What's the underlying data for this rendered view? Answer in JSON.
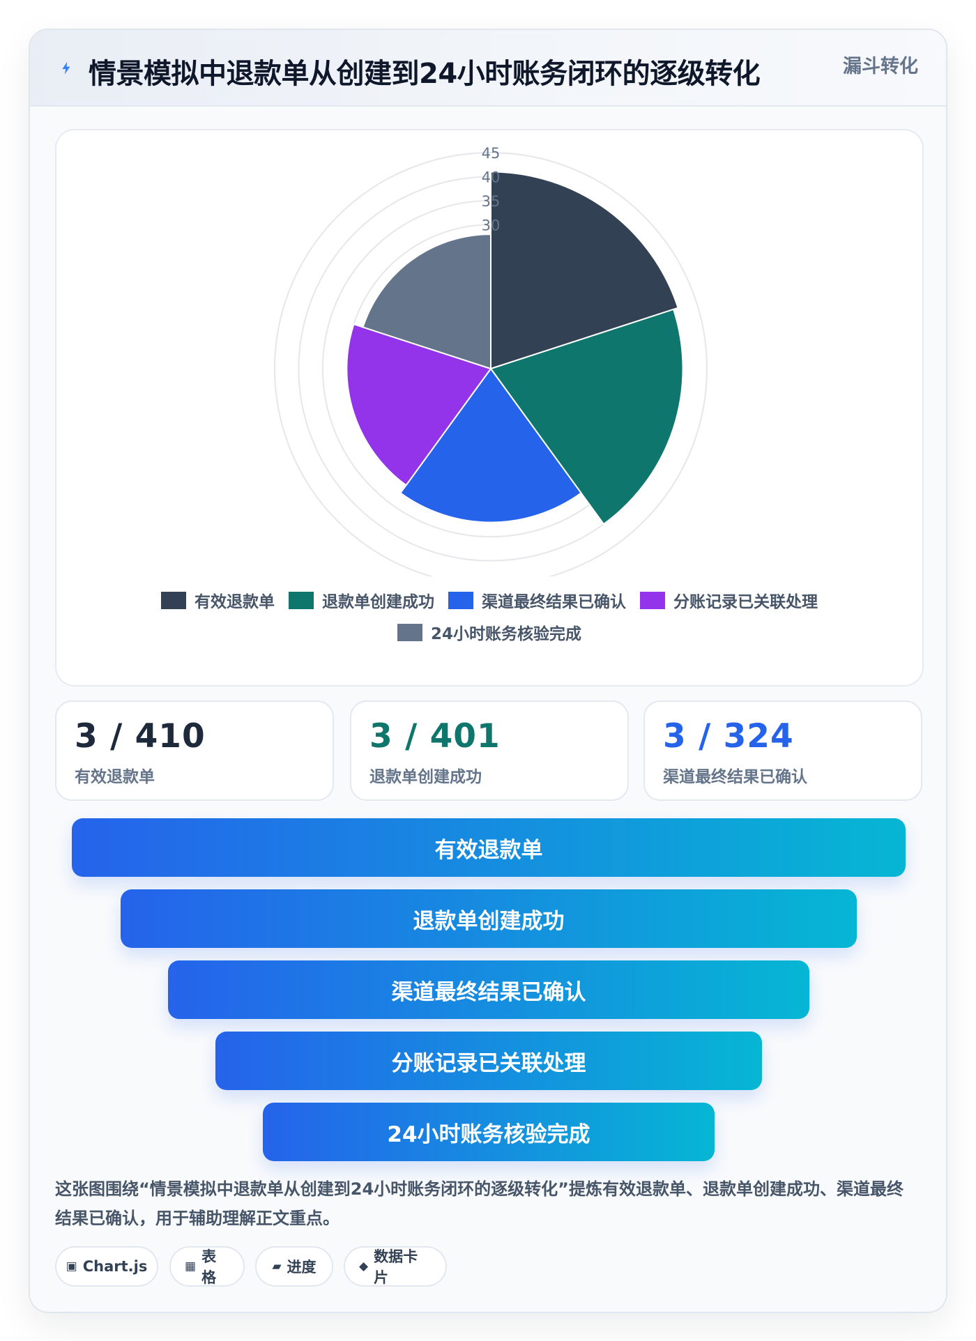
{
  "header": {
    "title": "情景模拟中退款单从创建到24小时账务闭环的逐级转化",
    "tag": "漏斗转化",
    "icon": "lightning-icon"
  },
  "chart_data": {
    "type": "polarArea",
    "categories": [
      "有效退款单",
      "退款单创建成功",
      "渠道最终结果已确认",
      "分账记录已关联处理",
      "24小时账务核验完成"
    ],
    "values": [
      41,
      40,
      32,
      30,
      28
    ],
    "colors": [
      "#334155",
      "#0f766e",
      "#2563eb",
      "#9333ea",
      "#64748b"
    ],
    "r_ticks": [
      "30",
      "35",
      "40",
      "45"
    ],
    "r_min": 0,
    "r_max": 45,
    "grid": true,
    "legend_position": "bottom"
  },
  "stats": [
    {
      "value": "3 / 410",
      "label": "有效退款单",
      "color": "#1e293b"
    },
    {
      "value": "3 / 401",
      "label": "退款单创建成功",
      "color": "#0f766e"
    },
    {
      "value": "3 / 324",
      "label": "渠道最终结果已确认",
      "color": "#2563eb"
    }
  ],
  "funnel": [
    {
      "label": "有效退款单"
    },
    {
      "label": "退款单创建成功"
    },
    {
      "label": "渠道最终结果已确认"
    },
    {
      "label": "分账记录已关联处理"
    },
    {
      "label": "24小时账务核验完成"
    }
  ],
  "description": "这张图围绕“情景模拟中退款单从创建到24小时账务闭环的逐级转化”提炼有效退款单、退款单创建成功、渠道最终结果已确认，用于辅助理解正文重点。",
  "chips": [
    {
      "icon": "▣",
      "label": "Chart.js"
    },
    {
      "icon": "▦",
      "label": "表格"
    },
    {
      "icon": "▰",
      "label": "进度"
    },
    {
      "icon": "◆",
      "label": "数据卡片"
    }
  ]
}
